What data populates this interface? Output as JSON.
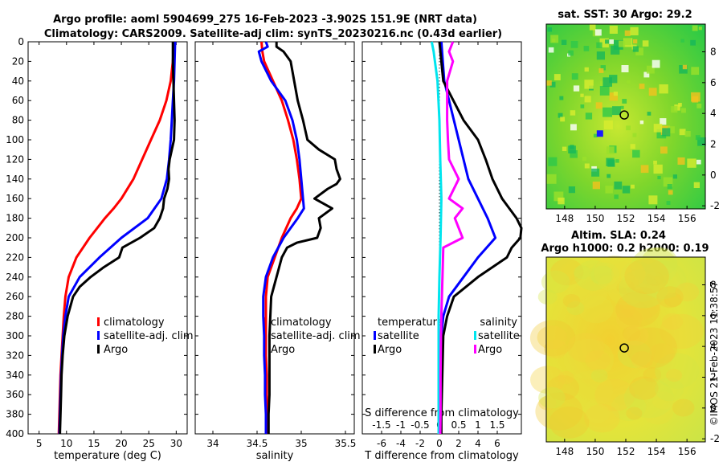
{
  "title": {
    "line1": "Argo profile: aoml 5904699_275 16-Feb-2023 -3.902S 151.9E (NRT data)",
    "line2": "Climatology: CARS2009. Satellite-adj clim: synTS_20230216.nc (0.43d earlier)"
  },
  "stamp": "©IMOS 21-Feb-2023 11:38:57",
  "colors": {
    "climatology": "#ff0000",
    "satellite": "#0000ff",
    "argo": "#000000",
    "sat_diff_s": "#00e5ee",
    "argo_diff_s": "#ff00ff"
  },
  "chart_data": [
    {
      "type": "line",
      "name": "temperature",
      "xlabel": "temperature (deg C)",
      "xlim": [
        3,
        32
      ],
      "xticks": [
        "5",
        "10",
        "15",
        "20",
        "25",
        "30"
      ],
      "ylim": [
        0,
        400
      ],
      "yticks": [
        "0",
        "20",
        "40",
        "60",
        "80",
        "100",
        "120",
        "140",
        "160",
        "180",
        "200",
        "220",
        "240",
        "260",
        "280",
        "300",
        "320",
        "340",
        "360",
        "380",
        "400"
      ],
      "legend": [
        "climatology",
        "satellite-adj. clim",
        "Argo"
      ],
      "series": [
        {
          "name": "climatology",
          "color": "#ff0000",
          "depth": [
            0,
            20,
            40,
            60,
            80,
            100,
            120,
            140,
            160,
            170,
            180,
            200,
            220,
            240,
            260,
            280,
            300,
            320,
            340,
            360,
            380,
            400
          ],
          "values": [
            29.6,
            29.4,
            29.0,
            28.2,
            27.0,
            25.4,
            23.8,
            22.2,
            20.0,
            18.6,
            17.0,
            14.2,
            11.8,
            10.4,
            9.8,
            9.5,
            9.3,
            9.1,
            8.9,
            8.8,
            8.7,
            8.6
          ]
        },
        {
          "name": "satellite-adj. clim",
          "color": "#0000ff",
          "depth": [
            0,
            20,
            40,
            60,
            80,
            100,
            120,
            140,
            160,
            180,
            200,
            220,
            240,
            260,
            280,
            300,
            320,
            340,
            360,
            380,
            400
          ],
          "values": [
            29.8,
            29.7,
            29.6,
            29.4,
            29.2,
            29.0,
            28.7,
            28.3,
            27.3,
            24.8,
            20.0,
            16.0,
            12.4,
            10.4,
            9.8,
            9.4,
            9.2,
            9.0,
            8.9,
            8.8,
            8.7
          ]
        },
        {
          "name": "Argo",
          "color": "#000000",
          "depth": [
            0,
            20,
            40,
            60,
            80,
            100,
            110,
            120,
            130,
            140,
            150,
            160,
            170,
            180,
            190,
            200,
            210,
            220,
            230,
            240,
            250,
            260,
            280,
            300,
            320,
            340,
            360,
            380,
            400
          ],
          "values": [
            29.4,
            29.4,
            29.5,
            29.6,
            29.7,
            29.6,
            29.2,
            28.8,
            28.6,
            28.7,
            28.4,
            27.8,
            27.6,
            27.0,
            26.0,
            23.4,
            20.2,
            19.6,
            16.8,
            14.4,
            12.4,
            11.2,
            10.2,
            9.6,
            9.3,
            9.1,
            9.0,
            8.9,
            8.8
          ]
        }
      ]
    },
    {
      "type": "line",
      "name": "salinity",
      "xlabel": "salinity",
      "xlim": [
        33.8,
        35.6
      ],
      "xticks": [
        "34",
        "34.5",
        "35",
        "35.5"
      ],
      "ylim": [
        0,
        400
      ],
      "legend": [
        "climatology",
        "satellite-adj. clim",
        "Argo"
      ],
      "series": [
        {
          "name": "climatology",
          "color": "#ff0000",
          "depth": [
            0,
            10,
            20,
            40,
            60,
            80,
            100,
            120,
            140,
            160,
            170,
            180,
            200,
            220,
            240,
            260,
            280,
            300,
            320,
            340,
            360,
            380,
            400
          ],
          "values": [
            34.55,
            34.56,
            34.58,
            34.68,
            34.78,
            34.85,
            34.91,
            34.95,
            34.98,
            35.0,
            34.95,
            34.88,
            34.78,
            34.7,
            34.62,
            34.6,
            34.6,
            34.6,
            34.6,
            34.61,
            34.61,
            34.62,
            34.62
          ]
        },
        {
          "name": "satellite-adj. clim",
          "color": "#0000ff",
          "depth": [
            0,
            5,
            10,
            20,
            40,
            60,
            80,
            100,
            120,
            140,
            160,
            170,
            180,
            190,
            200,
            220,
            240,
            260,
            280,
            300,
            320,
            340,
            360,
            380,
            400
          ],
          "values": [
            34.6,
            34.62,
            34.52,
            34.55,
            34.66,
            34.82,
            34.9,
            34.95,
            34.98,
            35.0,
            35.02,
            35.03,
            34.96,
            34.88,
            34.8,
            34.68,
            34.6,
            34.57,
            34.57,
            34.58,
            34.58,
            34.59,
            34.59,
            34.6,
            34.6
          ]
        },
        {
          "name": "Argo",
          "color": "#000000",
          "depth": [
            0,
            5,
            10,
            20,
            40,
            60,
            80,
            100,
            110,
            120,
            130,
            140,
            145,
            150,
            160,
            170,
            180,
            190,
            200,
            205,
            210,
            220,
            240,
            260,
            280,
            300,
            320,
            340,
            360,
            380,
            400
          ],
          "values": [
            34.72,
            34.72,
            34.8,
            34.88,
            34.92,
            34.96,
            35.02,
            35.07,
            35.2,
            35.38,
            35.4,
            35.44,
            35.4,
            35.3,
            35.15,
            35.35,
            35.2,
            35.22,
            35.18,
            34.95,
            34.84,
            34.78,
            34.72,
            34.66,
            34.65,
            34.64,
            34.64,
            34.64,
            34.64,
            34.63,
            34.63
          ]
        }
      ]
    },
    {
      "type": "line",
      "name": "difference",
      "xlabel": "T difference from climatology",
      "xlabel_top": "S difference from climatology",
      "xlim": [
        -8,
        8.5
      ],
      "xticks": [
        "-6",
        "-4",
        "-2",
        "0",
        "2",
        "4",
        "6"
      ],
      "xticks_top": [
        "-1.5",
        "-1",
        "-0.5",
        "0",
        "0.5",
        "1",
        "1.5"
      ],
      "ylim": [
        0,
        400
      ],
      "legend_groups": [
        {
          "title": "temperature",
          "items": [
            "satellite",
            "Argo"
          ]
        },
        {
          "title": "salinity",
          "items": [
            "satellite",
            "Argo"
          ]
        }
      ],
      "series": [
        {
          "name": "temperature satellite",
          "color": "#0000ff",
          "depth": [
            0,
            40,
            80,
            100,
            120,
            140,
            160,
            180,
            200,
            220,
            240,
            260,
            280,
            300,
            340,
            380,
            400
          ],
          "values": [
            0.2,
            0.5,
            1.5,
            2.0,
            2.5,
            3.0,
            4.0,
            5.0,
            5.8,
            4.0,
            2.5,
            1.0,
            0.4,
            0.2,
            0.2,
            0.1,
            0.1
          ]
        },
        {
          "name": "temperature Argo",
          "color": "#000000",
          "depth": [
            0,
            40,
            80,
            100,
            120,
            140,
            160,
            180,
            190,
            200,
            210,
            220,
            240,
            260,
            280,
            300,
            340,
            380,
            400
          ],
          "values": [
            0.0,
            0.4,
            2.5,
            4.0,
            4.8,
            5.5,
            6.5,
            8.0,
            8.5,
            8.4,
            7.5,
            7.0,
            4.0,
            1.5,
            0.8,
            0.4,
            0.3,
            0.2,
            0.2
          ]
        },
        {
          "name": "salinity satellite",
          "color": "#00e5ee",
          "depth": [
            0,
            10,
            40,
            80,
            120,
            160,
            200,
            240,
            280,
            300,
            340,
            380,
            400
          ],
          "values": [
            -0.2,
            -0.15,
            -0.05,
            0.0,
            0.02,
            0.05,
            0.03,
            0.0,
            -0.02,
            -0.02,
            -0.02,
            -0.02,
            -0.02
          ]
        },
        {
          "name": "salinity Argo",
          "color": "#ff00ff",
          "depth": [
            0,
            10,
            20,
            40,
            80,
            100,
            120,
            140,
            160,
            170,
            180,
            190,
            200,
            210,
            240,
            280,
            300,
            340,
            380,
            400
          ],
          "values": [
            0.35,
            0.25,
            0.35,
            0.2,
            0.2,
            0.22,
            0.25,
            0.5,
            0.25,
            0.6,
            0.4,
            0.5,
            0.6,
            0.1,
            0.08,
            0.05,
            0.04,
            0.03,
            0.03,
            0.02
          ]
        }
      ]
    },
    {
      "type": "heatmap",
      "name": "sst-map",
      "title": "sat. SST: 30 Argo: 29.2",
      "xlim": [
        146.8,
        157.2
      ],
      "xticks": [
        "148",
        "150",
        "152",
        "154",
        "156"
      ],
      "ylim": [
        -2.2,
        9.8
      ],
      "yticks": [
        "8",
        "6",
        "4",
        "2",
        "0",
        "-2"
      ],
      "marker": [
        151.9,
        3.9
      ]
    },
    {
      "type": "heatmap",
      "name": "sla-map",
      "title": "Altim. SLA: 0.24",
      "subtitle": "Argo h1000: 0.2 h2000: 0.19",
      "xlim": [
        146.8,
        157.2
      ],
      "xticks": [
        "148",
        "150",
        "152",
        "154",
        "156"
      ],
      "ylim": [
        -2.2,
        9.8
      ],
      "yticks": [
        "8",
        "6",
        "4",
        "2",
        "0",
        "-2"
      ],
      "marker": [
        151.9,
        3.9
      ]
    }
  ]
}
